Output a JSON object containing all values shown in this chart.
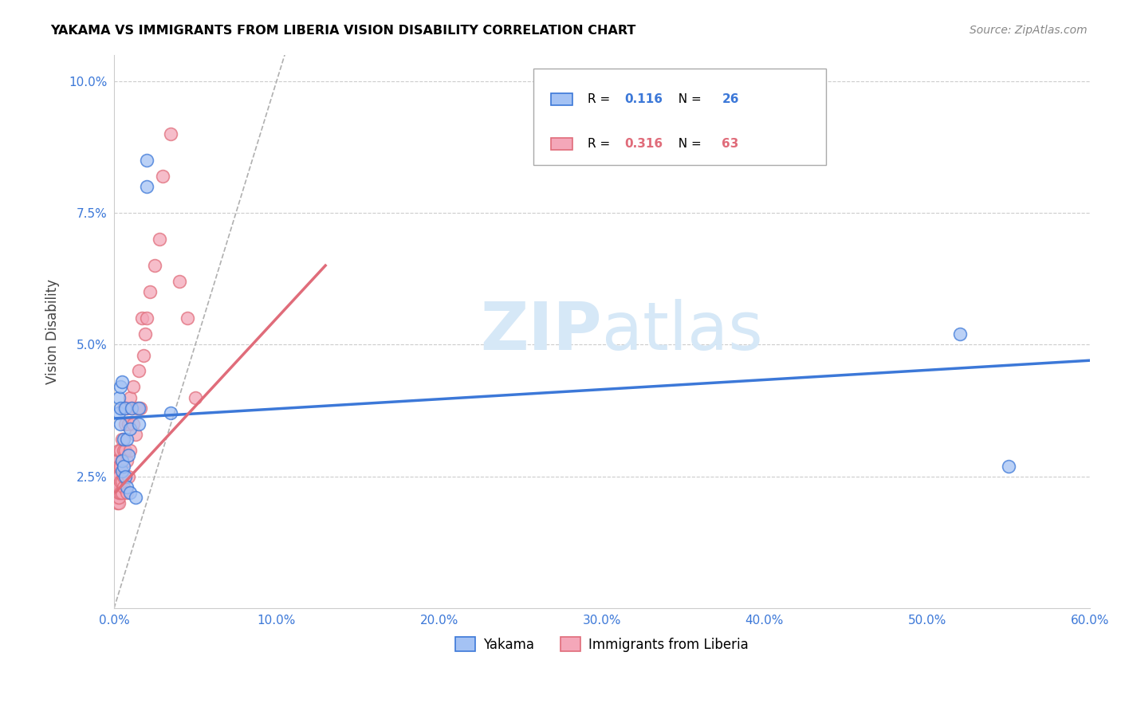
{
  "title": "YAKAMA VS IMMIGRANTS FROM LIBERIA VISION DISABILITY CORRELATION CHART",
  "source": "Source: ZipAtlas.com",
  "ylabel": "Vision Disability",
  "xlim": [
    0.0,
    0.6
  ],
  "ylim": [
    0.0,
    0.105
  ],
  "yticks": [
    0.025,
    0.05,
    0.075,
    0.1
  ],
  "ytick_labels": [
    "2.5%",
    "5.0%",
    "7.5%",
    "10.0%"
  ],
  "xticks": [
    0.0,
    0.1,
    0.2,
    0.3,
    0.4,
    0.5,
    0.6
  ],
  "xtick_labels": [
    "0.0%",
    "10.0%",
    "20.0%",
    "30.0%",
    "40.0%",
    "50.0%",
    "60.0%"
  ],
  "legend_label1": "Yakama",
  "legend_label2": "Immigrants from Liberia",
  "R1": "0.116",
  "N1": "26",
  "R2": "0.316",
  "N2": "63",
  "color_blue": "#a4c2f4",
  "color_pink": "#f4a7b9",
  "color_blue_dark": "#3c78d8",
  "color_pink_dark": "#e06c7a",
  "color_diag": "#b0b0b0",
  "watermark_color": "#d6e8f7",
  "blue_x": [
    0.003,
    0.003,
    0.004,
    0.004,
    0.004,
    0.005,
    0.005,
    0.005,
    0.006,
    0.006,
    0.007,
    0.007,
    0.008,
    0.008,
    0.009,
    0.01,
    0.01,
    0.011,
    0.013,
    0.015,
    0.015,
    0.02,
    0.02,
    0.035,
    0.52,
    0.55
  ],
  "blue_y": [
    0.037,
    0.04,
    0.035,
    0.038,
    0.042,
    0.026,
    0.028,
    0.043,
    0.027,
    0.032,
    0.025,
    0.038,
    0.023,
    0.032,
    0.029,
    0.022,
    0.034,
    0.038,
    0.021,
    0.035,
    0.038,
    0.08,
    0.085,
    0.037,
    0.052,
    0.027
  ],
  "pink_x": [
    0.001,
    0.001,
    0.001,
    0.001,
    0.001,
    0.001,
    0.001,
    0.002,
    0.002,
    0.002,
    0.002,
    0.002,
    0.002,
    0.002,
    0.002,
    0.003,
    0.003,
    0.003,
    0.003,
    0.003,
    0.003,
    0.003,
    0.004,
    0.004,
    0.004,
    0.004,
    0.005,
    0.005,
    0.005,
    0.005,
    0.006,
    0.006,
    0.006,
    0.006,
    0.007,
    0.007,
    0.007,
    0.008,
    0.008,
    0.008,
    0.009,
    0.009,
    0.01,
    0.01,
    0.011,
    0.012,
    0.012,
    0.013,
    0.014,
    0.015,
    0.016,
    0.017,
    0.018,
    0.019,
    0.02,
    0.022,
    0.025,
    0.028,
    0.03,
    0.035,
    0.04,
    0.045,
    0.05
  ],
  "pink_y": [
    0.021,
    0.022,
    0.023,
    0.024,
    0.025,
    0.026,
    0.028,
    0.02,
    0.021,
    0.022,
    0.023,
    0.024,
    0.025,
    0.026,
    0.028,
    0.02,
    0.021,
    0.022,
    0.023,
    0.025,
    0.027,
    0.03,
    0.022,
    0.024,
    0.027,
    0.03,
    0.022,
    0.024,
    0.028,
    0.032,
    0.023,
    0.025,
    0.03,
    0.038,
    0.025,
    0.03,
    0.035,
    0.022,
    0.028,
    0.038,
    0.025,
    0.035,
    0.03,
    0.04,
    0.038,
    0.035,
    0.042,
    0.033,
    0.038,
    0.045,
    0.038,
    0.055,
    0.048,
    0.052,
    0.055,
    0.06,
    0.065,
    0.07,
    0.082,
    0.09,
    0.062,
    0.055,
    0.04
  ],
  "blue_line_x": [
    0.0,
    0.6
  ],
  "blue_line_y_start": 0.036,
  "blue_line_y_end": 0.047,
  "pink_line_x_start": 0.001,
  "pink_line_x_end": 0.13,
  "pink_line_y_start": 0.022,
  "pink_line_y_end": 0.065
}
